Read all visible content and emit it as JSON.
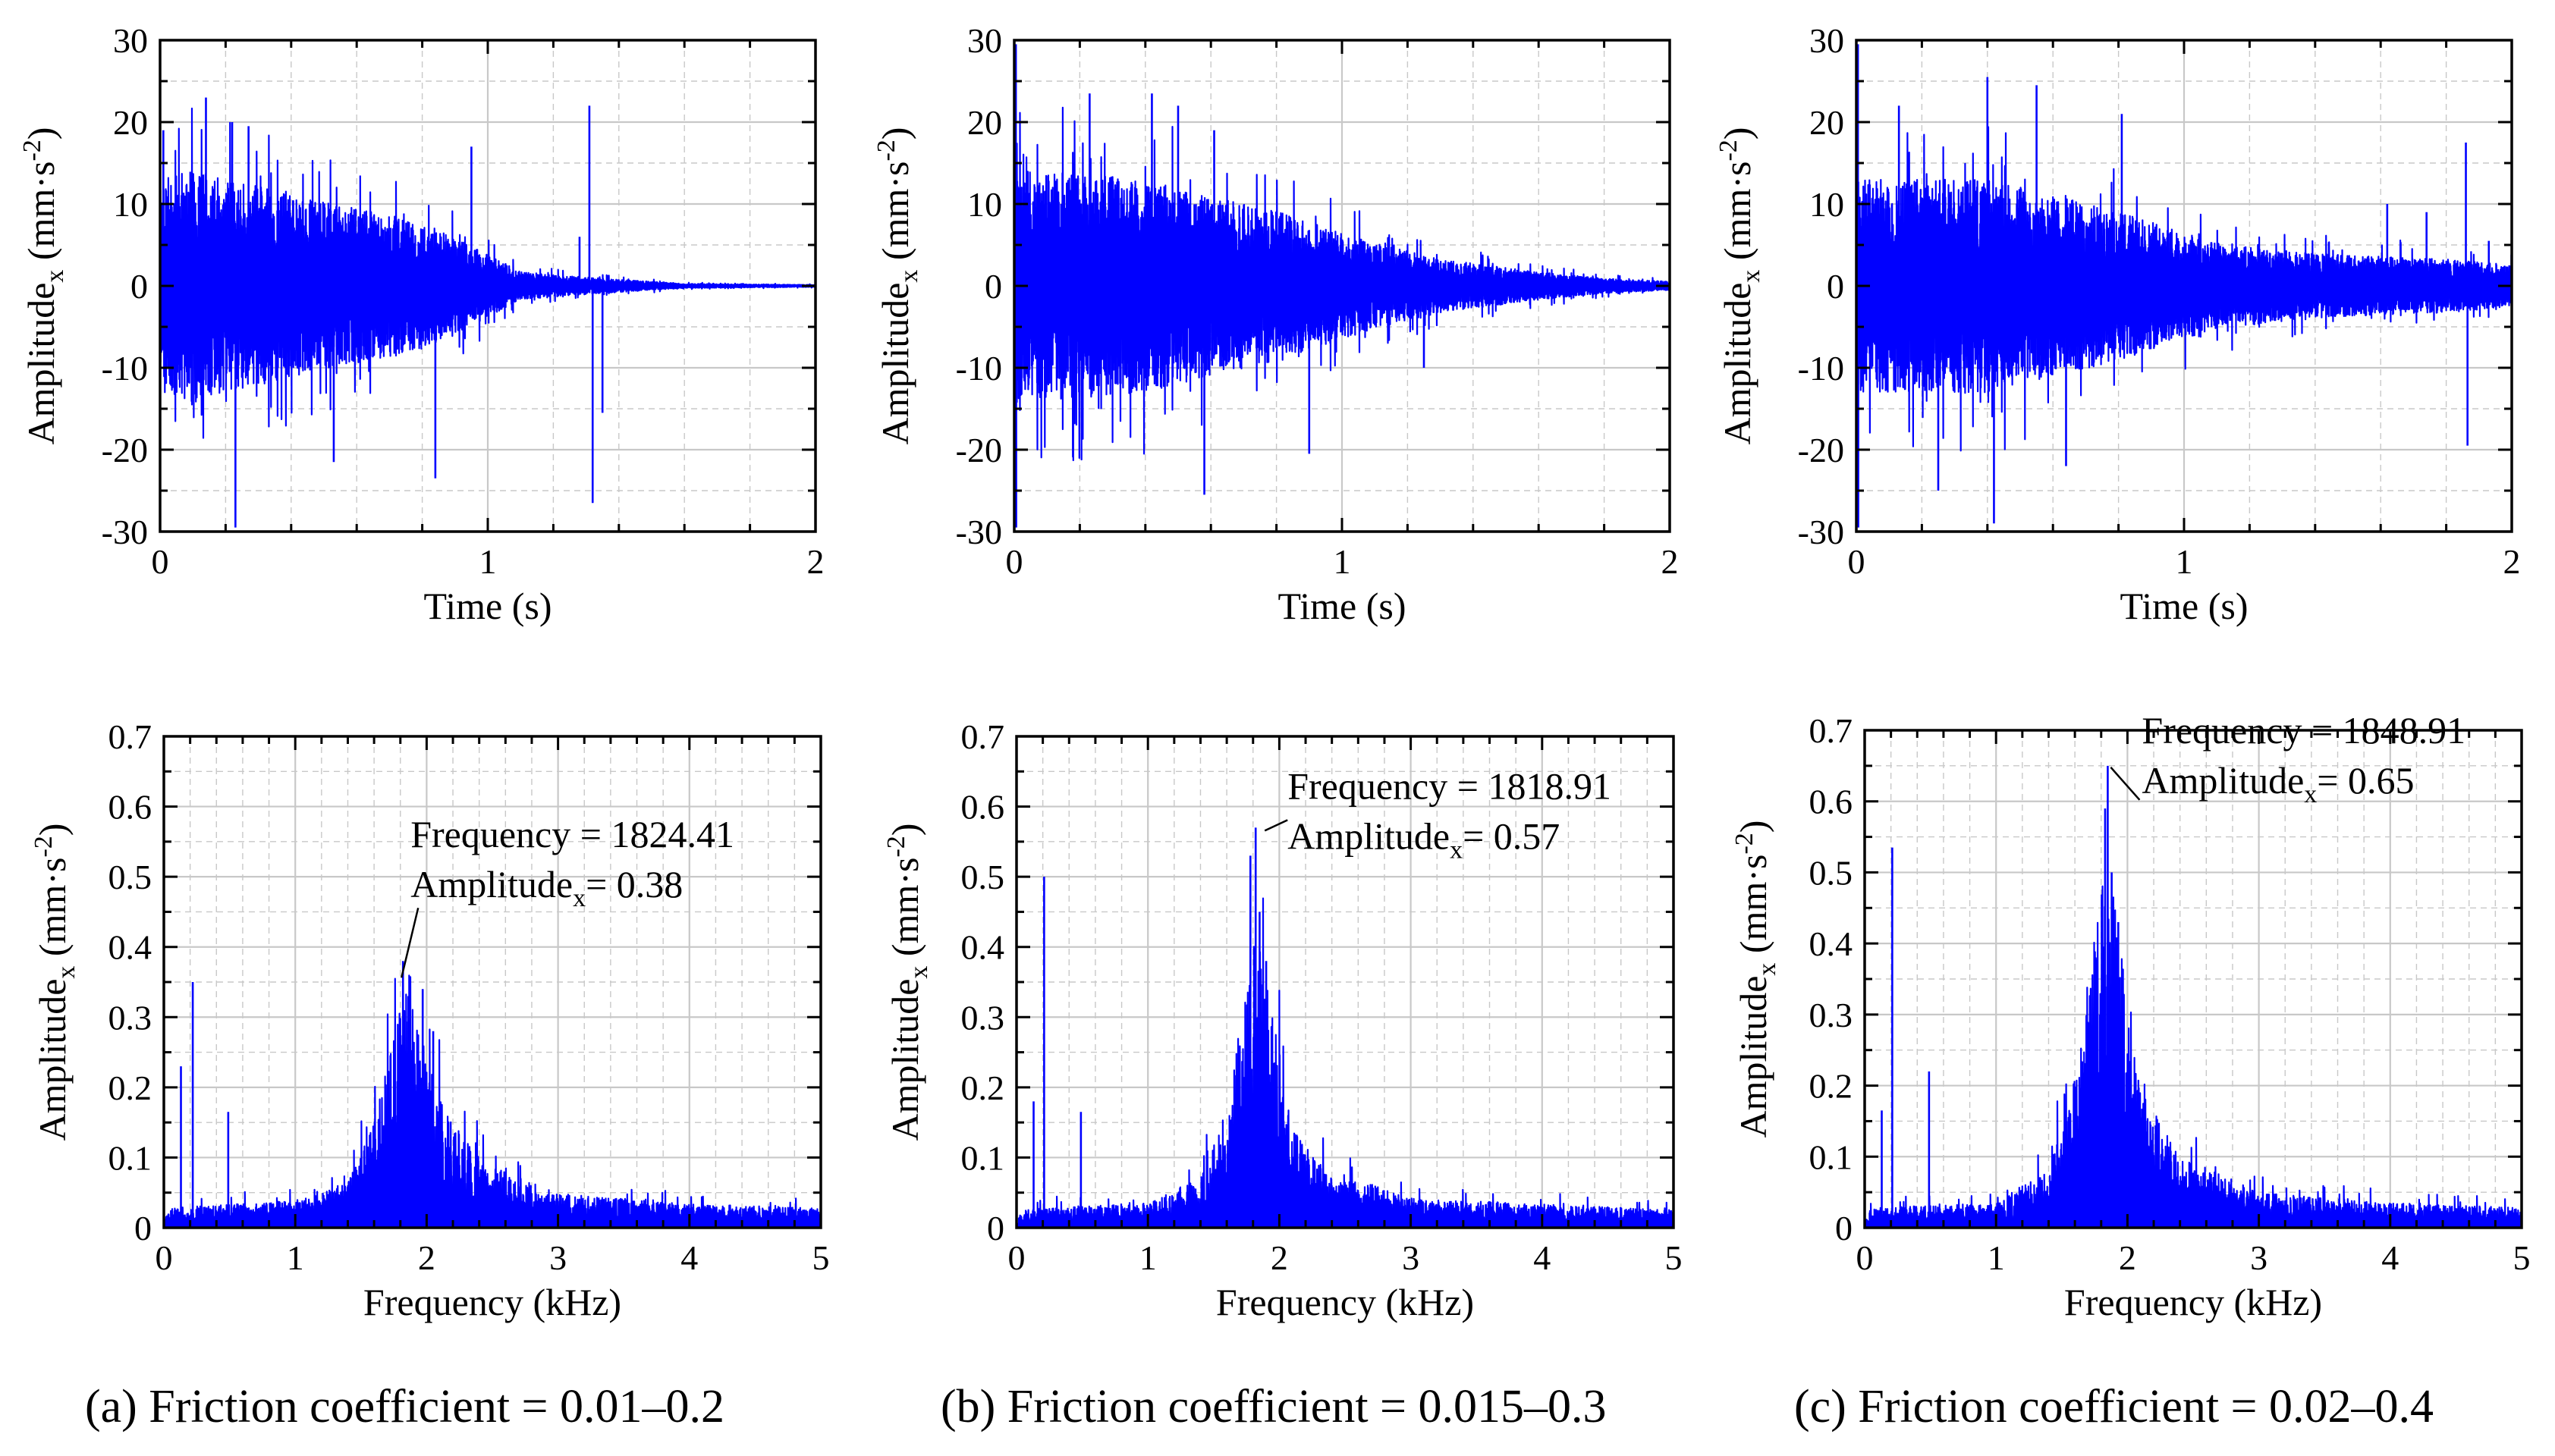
{
  "figure": {
    "captions": [
      "(a) Friction coefficient = 0.01–0.2",
      "(b) Friction coefficient = 0.015–0.3",
      "(c) Friction coefficient = 0.02–0.4"
    ],
    "line_color": "#0000ff",
    "grid_color": "#c8c8c8"
  },
  "chart_data": [
    {
      "id": "a-time",
      "type": "line",
      "seed": 11,
      "xlabel": "Time (s)",
      "ylabel_main": "Amplitude",
      "ylabel_sub": "x",
      "ylabel_unit": "(mm·s",
      "ylabel_exp": "-2",
      "ylabel_close": ")",
      "xlim": [
        0,
        2
      ],
      "ylim": [
        -30,
        30
      ],
      "xticks": [
        0,
        1,
        2
      ],
      "yticks": [
        -30,
        -20,
        -10,
        0,
        10,
        20,
        30
      ],
      "envelope": [
        [
          0,
          10
        ],
        [
          0.1,
          11
        ],
        [
          0.4,
          8.5
        ],
        [
          0.8,
          6
        ],
        [
          1.0,
          3
        ],
        [
          1.1,
          1.3
        ],
        [
          1.3,
          0.8
        ],
        [
          1.45,
          0.5
        ],
        [
          1.6,
          0.2
        ],
        [
          2.0,
          0.1
        ]
      ],
      "spikes": [
        [
          0.01,
          19
        ],
        [
          0.14,
          23
        ],
        [
          0.22,
          20
        ],
        [
          0.23,
          -29.5
        ],
        [
          0.27,
          19.5
        ],
        [
          0.53,
          -21.5
        ],
        [
          0.84,
          -23.5
        ],
        [
          0.95,
          17
        ],
        [
          1.28,
          6
        ],
        [
          1.31,
          22
        ],
        [
          1.32,
          -26.5
        ],
        [
          1.35,
          -15.5
        ]
      ]
    },
    {
      "id": "b-time",
      "type": "line",
      "seed": 23,
      "xlabel": "Time (s)",
      "ylabel_main": "Amplitude",
      "ylabel_sub": "x",
      "ylabel_unit": "(mm·s",
      "ylabel_exp": "-2",
      "ylabel_close": ")",
      "xlim": [
        0,
        2
      ],
      "ylim": [
        -30,
        30
      ],
      "xticks": [
        0,
        1,
        2
      ],
      "yticks": [
        -30,
        -20,
        -10,
        0,
        10,
        20,
        30
      ],
      "envelope": [
        [
          0,
          11
        ],
        [
          0.4,
          10
        ],
        [
          0.8,
          7
        ],
        [
          1.1,
          4
        ],
        [
          1.3,
          2.5
        ],
        [
          1.6,
          1.3
        ],
        [
          1.8,
          0.7
        ],
        [
          2.0,
          0.4
        ]
      ],
      "spikes": [
        [
          0.005,
          29.5
        ],
        [
          0.006,
          -29.5
        ],
        [
          0.23,
          23.5
        ],
        [
          0.42,
          23.5
        ],
        [
          0.5,
          22
        ],
        [
          0.58,
          -25.5
        ],
        [
          0.61,
          19
        ],
        [
          0.9,
          -20.5
        ],
        [
          1.25,
          -10
        ]
      ]
    },
    {
      "id": "c-time",
      "type": "line",
      "seed": 37,
      "xlabel": "Time (s)",
      "ylabel_main": "Amplitude",
      "ylabel_sub": "x",
      "ylabel_unit": "(mm·s",
      "ylabel_exp": "-2",
      "ylabel_close": ")",
      "xlim": [
        0,
        2
      ],
      "ylim": [
        -30,
        30
      ],
      "xticks": [
        0,
        1,
        2
      ],
      "yticks": [
        -30,
        -20,
        -10,
        0,
        10,
        20,
        30
      ],
      "envelope": [
        [
          0,
          10
        ],
        [
          0.4,
          10
        ],
        [
          0.8,
          7
        ],
        [
          1.1,
          4
        ],
        [
          1.4,
          3
        ],
        [
          1.8,
          2.5
        ],
        [
          2.0,
          2
        ]
      ],
      "spikes": [
        [
          0.005,
          29.5
        ],
        [
          0.006,
          -29.5
        ],
        [
          0.13,
          22
        ],
        [
          0.25,
          -25
        ],
        [
          0.4,
          25.5
        ],
        [
          0.42,
          -29
        ],
        [
          0.55,
          24.5
        ],
        [
          0.64,
          -22
        ],
        [
          0.81,
          21
        ],
        [
          1.62,
          10
        ],
        [
          1.74,
          9
        ],
        [
          1.86,
          17.5
        ],
        [
          1.865,
          -19.5
        ],
        [
          1.93,
          5.5
        ]
      ]
    },
    {
      "id": "a-freq",
      "type": "line",
      "seed": 53,
      "xlabel": "Frequency (kHz)",
      "ylabel_main": "Amplitude",
      "ylabel_sub": "x",
      "ylabel_unit": "(mm·s",
      "ylabel_exp": "-2",
      "ylabel_close": ")",
      "xlim": [
        0,
        5
      ],
      "ylim": [
        0,
        0.7
      ],
      "xticks": [
        0,
        1,
        2,
        3,
        4,
        5
      ],
      "yticks": [
        0,
        0.1,
        0.2,
        0.3,
        0.4,
        0.5,
        0.6,
        0.7
      ],
      "envelope": [
        [
          0,
          0.005
        ],
        [
          0.05,
          0.02
        ],
        [
          1.0,
          0.028
        ],
        [
          1.4,
          0.045
        ],
        [
          1.6,
          0.11
        ],
        [
          1.75,
          0.2
        ],
        [
          1.82,
          0.25
        ],
        [
          1.95,
          0.2
        ],
        [
          2.1,
          0.13
        ],
        [
          2.4,
          0.07
        ],
        [
          2.7,
          0.05
        ],
        [
          3.0,
          0.035
        ],
        [
          4.0,
          0.024
        ],
        [
          5.0,
          0.02
        ]
      ],
      "spikes": [
        [
          0.13,
          0.23
        ],
        [
          0.22,
          0.35
        ],
        [
          0.49,
          0.165
        ],
        [
          1.82,
          0.38
        ],
        [
          1.86,
          0.33
        ],
        [
          1.97,
          0.34
        ],
        [
          2.05,
          0.28
        ]
      ],
      "peak_annotation": {
        "frequency_label": "Frequency = 1824.41",
        "amplitude_label": "Amplitude",
        "amplitude_sub": "x",
        "amplitude_value": "= 0.38",
        "x": 1.82,
        "y": 0.38
      }
    },
    {
      "id": "b-freq",
      "type": "line",
      "seed": 71,
      "xlabel": "Frequency (kHz)",
      "ylabel_main": "Amplitude",
      "ylabel_sub": "x",
      "ylabel_unit": "(mm·s",
      "ylabel_exp": "-2",
      "ylabel_close": ")",
      "xlim": [
        0,
        5
      ],
      "ylim": [
        0,
        0.7
      ],
      "xticks": [
        0,
        1,
        2,
        3,
        4,
        5
      ],
      "yticks": [
        0,
        0.1,
        0.2,
        0.3,
        0.4,
        0.5,
        0.6,
        0.7
      ],
      "envelope": [
        [
          0,
          0.005
        ],
        [
          0.05,
          0.02
        ],
        [
          1.0,
          0.025
        ],
        [
          1.4,
          0.05
        ],
        [
          1.6,
          0.12
        ],
        [
          1.75,
          0.25
        ],
        [
          1.82,
          0.33
        ],
        [
          1.95,
          0.22
        ],
        [
          2.1,
          0.1
        ],
        [
          2.4,
          0.05
        ],
        [
          2.7,
          0.045
        ],
        [
          3.0,
          0.03
        ],
        [
          4.0,
          0.024
        ],
        [
          5.0,
          0.018
        ]
      ],
      "spikes": [
        [
          0.13,
          0.18
        ],
        [
          0.21,
          0.5
        ],
        [
          0.49,
          0.165
        ],
        [
          1.78,
          0.53
        ],
        [
          1.82,
          0.57
        ],
        [
          1.85,
          0.45
        ],
        [
          1.9,
          0.38
        ]
      ],
      "peak_annotation": {
        "frequency_label": "Frequency = 1818.91",
        "amplitude_label": "Amplitude",
        "amplitude_sub": "x",
        "amplitude_value": "= 0.57",
        "x": 1.82,
        "y": 0.57
      }
    },
    {
      "id": "c-freq",
      "type": "line",
      "seed": 89,
      "xlabel": "Frequency (kHz)",
      "ylabel_main": "Amplitude",
      "ylabel_sub": "x",
      "ylabel_unit": "(mm·s",
      "ylabel_exp": "-2",
      "ylabel_close": ")",
      "xlim": [
        0,
        5
      ],
      "ylim": [
        0,
        0.7
      ],
      "xticks": [
        0,
        1,
        2,
        3,
        4,
        5
      ],
      "yticks": [
        0,
        0.1,
        0.2,
        0.3,
        0.4,
        0.5,
        0.6,
        0.7
      ],
      "envelope": [
        [
          0,
          0.005
        ],
        [
          0.05,
          0.02
        ],
        [
          1.0,
          0.025
        ],
        [
          1.4,
          0.06
        ],
        [
          1.6,
          0.15
        ],
        [
          1.75,
          0.3
        ],
        [
          1.85,
          0.38
        ],
        [
          1.95,
          0.28
        ],
        [
          2.1,
          0.14
        ],
        [
          2.4,
          0.07
        ],
        [
          2.7,
          0.055
        ],
        [
          3.0,
          0.035
        ],
        [
          4.0,
          0.025
        ],
        [
          5.0,
          0.02
        ]
      ],
      "spikes": [
        [
          0.13,
          0.165
        ],
        [
          0.21,
          0.535
        ],
        [
          0.49,
          0.22
        ],
        [
          1.83,
          0.59
        ],
        [
          1.85,
          0.65
        ],
        [
          1.88,
          0.5
        ],
        [
          1.93,
          0.43
        ]
      ],
      "peak_annotation": {
        "frequency_label": "Frequency = 1848.91",
        "amplitude_label": "Amplitude",
        "amplitude_sub": "x",
        "amplitude_value": "= 0.65",
        "x": 1.85,
        "y": 0.65
      }
    }
  ]
}
